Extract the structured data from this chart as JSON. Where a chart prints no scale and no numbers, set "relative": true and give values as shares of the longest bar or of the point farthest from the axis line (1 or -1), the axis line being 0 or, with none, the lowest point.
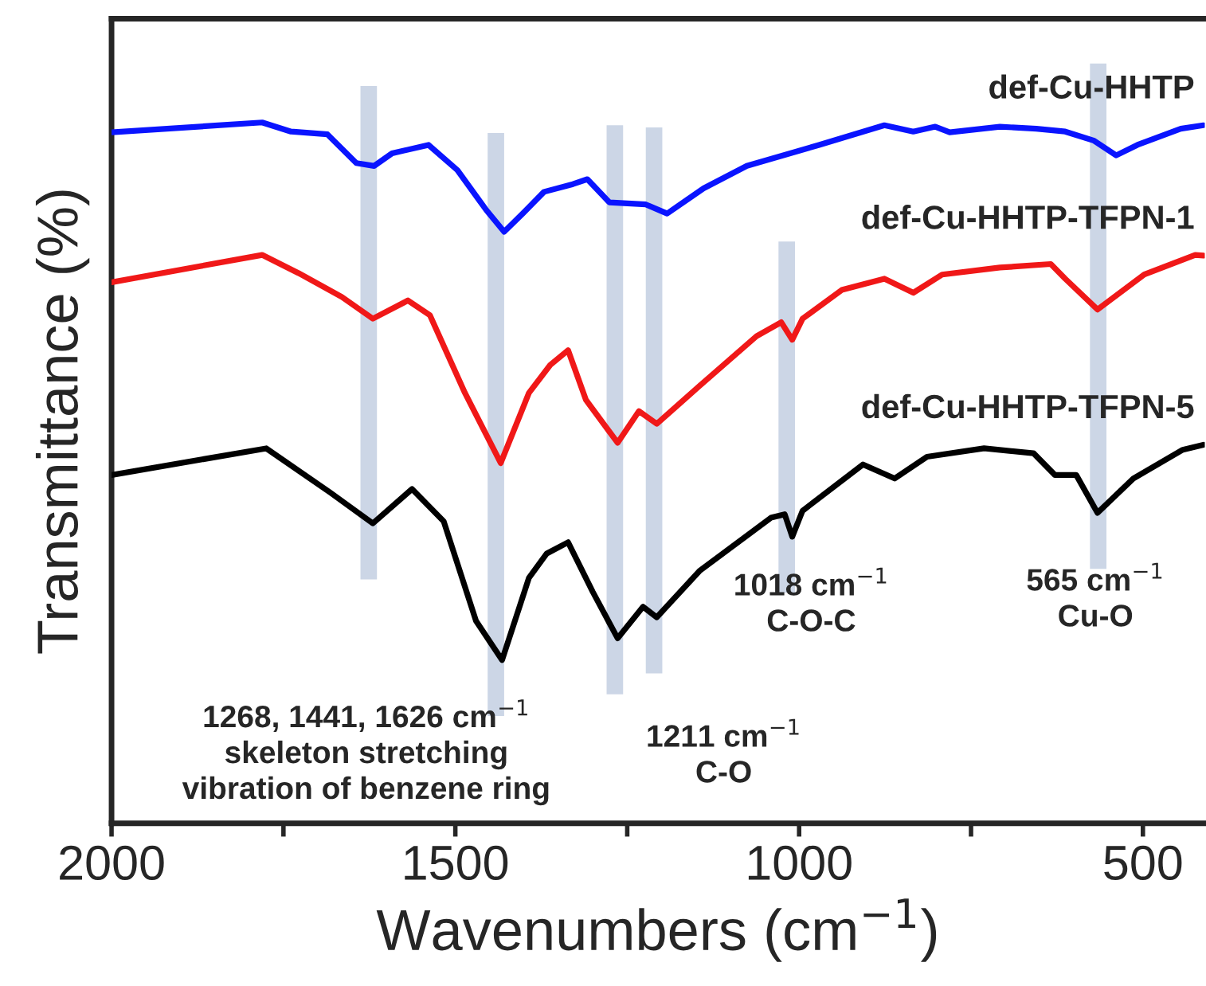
{
  "chart_data": {
    "type": "line",
    "relative": true,
    "xlabel": "Wavenumbers (cm$^{−1}$)",
    "ylabel": "Transmittance (%)",
    "xlim": [
      2000,
      410
    ],
    "xticks": [
      2000,
      {
        "value": 1750,
        "label": null
      },
      1500,
      {
        "value": 1250,
        "label": null
      },
      1000,
      {
        "value": 750,
        "label": null
      },
      500
    ],
    "grid": false,
    "legend": false,
    "line_style": "solid",
    "marker": "none",
    "tick_labels": "x",
    "series": [
      {
        "name": "def-Cu-HHTP",
        "color": "#0a14ff",
        "x": [
          2000,
          1781,
          1739,
          1686,
          1644,
          1618,
          1592,
          1539,
          1497,
          1455,
          1429,
          1402,
          1371,
          1329,
          1308,
          1276,
          1223,
          1192,
          1139,
          1076,
          971,
          876,
          834,
          802,
          781,
          708,
          655,
          613,
          571,
          539,
          508,
          445,
          412
        ],
        "values": [
          0.986,
          1.0,
          0.987,
          0.983,
          0.942,
          0.938,
          0.956,
          0.968,
          0.932,
          0.875,
          0.844,
          0.87,
          0.901,
          0.912,
          0.919,
          0.886,
          0.883,
          0.87,
          0.906,
          0.938,
          0.968,
          0.996,
          0.987,
          0.994,
          0.986,
          0.994,
          0.991,
          0.987,
          0.974,
          0.953,
          0.968,
          0.991,
          0.996
        ]
      },
      {
        "name": "def-Cu-HHTP-TFPN-1",
        "color": "#f01818",
        "x": [
          2000,
          1781,
          1728,
          1665,
          1620,
          1569,
          1537,
          1486,
          1434,
          1393,
          1362,
          1336,
          1310,
          1264,
          1233,
          1207,
          1145,
          1062,
          1026,
          1010,
          995,
          938,
          876,
          834,
          792,
          708,
          634,
          613,
          566,
          498,
          424,
          412
        ],
        "values": [
          0.772,
          0.811,
          0.785,
          0.751,
          0.72,
          0.746,
          0.725,
          0.614,
          0.514,
          0.614,
          0.654,
          0.675,
          0.604,
          0.543,
          0.588,
          0.57,
          0.624,
          0.695,
          0.715,
          0.69,
          0.72,
          0.761,
          0.777,
          0.757,
          0.783,
          0.793,
          0.798,
          0.777,
          0.733,
          0.783,
          0.811,
          0.81
        ]
      },
      {
        "name": "def-Cu-HHTP-TFPN-5",
        "color": "#000000",
        "x": [
          2000,
          1775,
          1682,
          1620,
          1563,
          1517,
          1470,
          1432,
          1393,
          1367,
          1336,
          1300,
          1264,
          1227,
          1207,
          1145,
          1041,
          1021,
          1010,
          995,
          907,
          861,
          814,
          731,
          659,
          628,
          597,
          566,
          514,
          442,
          412
        ],
        "values": [
          0.497,
          0.535,
          0.472,
          0.428,
          0.477,
          0.431,
          0.289,
          0.233,
          0.35,
          0.385,
          0.401,
          0.33,
          0.264,
          0.309,
          0.294,
          0.36,
          0.436,
          0.441,
          0.409,
          0.446,
          0.512,
          0.492,
          0.523,
          0.535,
          0.528,
          0.497,
          0.497,
          0.443,
          0.492,
          0.533,
          0.54
        ]
      }
    ],
    "bands": [
      {
        "axis": "x",
        "from": 1638,
        "to": 1614,
        "color": "#ccd6e6"
      },
      {
        "axis": "x",
        "from": 1453,
        "to": 1429,
        "color": "#ccd6e6"
      },
      {
        "axis": "x",
        "from": 1280,
        "to": 1256,
        "color": "#ccd6e6"
      },
      {
        "axis": "x",
        "from": 1223,
        "to": 1199,
        "color": "#ccd6e6"
      },
      {
        "axis": "x",
        "from": 1030,
        "to": 1006,
        "color": "#ccd6e6"
      },
      {
        "axis": "x",
        "from": 577,
        "to": 553,
        "color": "#ccd6e6"
      }
    ],
    "annotations": [
      "1268, 1441, 1626 cm$^{−1}$\nskeleton stretching\nvibration of benzene ring",
      "1211 cm$^{−1}$\nC-O",
      "1018 cm$^{−1}$\nC-O-C",
      "565 cm$^{−1}$\nCu-O"
    ]
  }
}
